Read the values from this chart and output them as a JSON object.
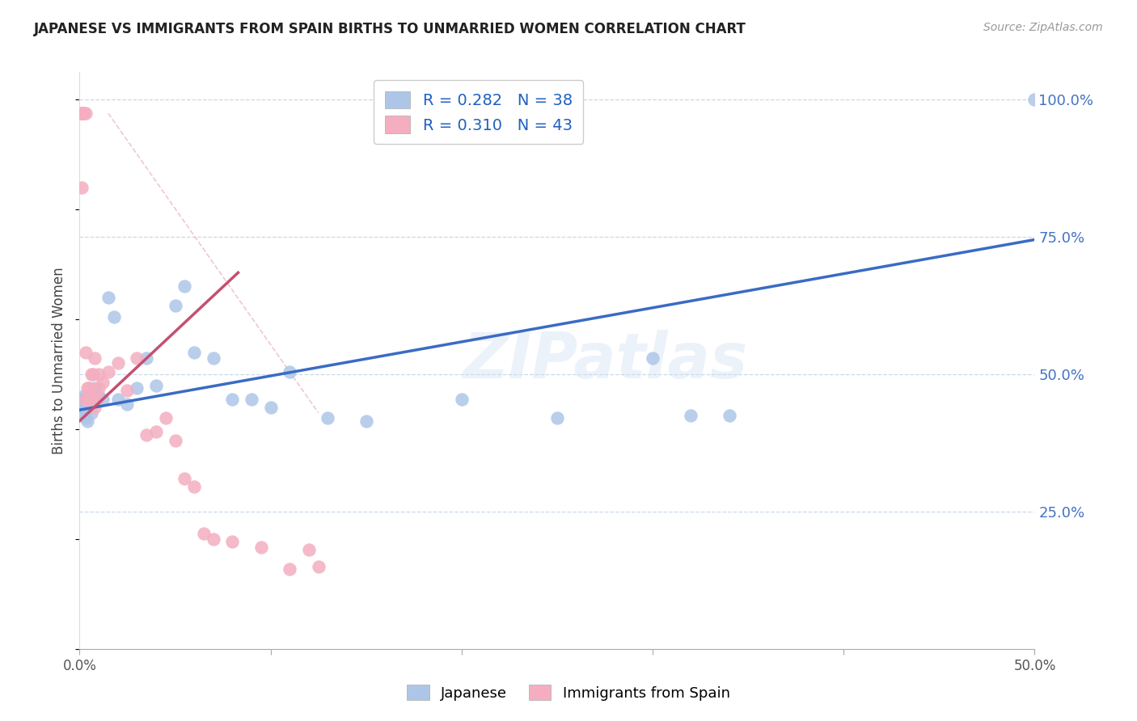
{
  "title": "JAPANESE VS IMMIGRANTS FROM SPAIN BIRTHS TO UNMARRIED WOMEN CORRELATION CHART",
  "source": "Source: ZipAtlas.com",
  "ylabel": "Births to Unmarried Women",
  "watermark": "ZIPatlas",
  "xlim": [
    0.0,
    0.5
  ],
  "ylim": [
    0.0,
    1.05
  ],
  "blue_color": "#adc6e8",
  "pink_color": "#f4aec0",
  "blue_line_color": "#3a6bc4",
  "pink_line_color": "#c45070",
  "grid_color": "#c8d8e8",
  "legend_labels": [
    "Japanese",
    "Immigrants from Spain"
  ],
  "ytick_vals": [
    0.0,
    0.25,
    0.5,
    0.75,
    1.0
  ],
  "ytick_labels": [
    "",
    "25.0%",
    "50.0%",
    "75.0%",
    "100.0%"
  ],
  "xtick_vals": [
    0.0,
    0.1,
    0.2,
    0.3,
    0.4,
    0.5
  ],
  "xtick_labels": [
    "0.0%",
    "",
    "",
    "",
    "",
    "50.0%"
  ],
  "blue_x": [
    0.001,
    0.001,
    0.002,
    0.002,
    0.003,
    0.003,
    0.004,
    0.005,
    0.005,
    0.006,
    0.007,
    0.008,
    0.009,
    0.01,
    0.012,
    0.015,
    0.018,
    0.02,
    0.025,
    0.03,
    0.035,
    0.04,
    0.05,
    0.055,
    0.06,
    0.07,
    0.08,
    0.09,
    0.1,
    0.11,
    0.13,
    0.15,
    0.2,
    0.25,
    0.3,
    0.32,
    0.34,
    0.5
  ],
  "blue_y": [
    0.44,
    0.455,
    0.43,
    0.46,
    0.42,
    0.445,
    0.415,
    0.44,
    0.46,
    0.43,
    0.455,
    0.475,
    0.455,
    0.46,
    0.455,
    0.64,
    0.605,
    0.455,
    0.445,
    0.475,
    0.53,
    0.48,
    0.625,
    0.66,
    0.54,
    0.53,
    0.455,
    0.455,
    0.44,
    0.505,
    0.42,
    0.415,
    0.455,
    0.42,
    0.53,
    0.425,
    0.425,
    1.0
  ],
  "pink_x": [
    0.001,
    0.001,
    0.001,
    0.001,
    0.001,
    0.002,
    0.002,
    0.002,
    0.002,
    0.003,
    0.003,
    0.003,
    0.004,
    0.004,
    0.005,
    0.005,
    0.006,
    0.006,
    0.007,
    0.007,
    0.008,
    0.008,
    0.009,
    0.01,
    0.01,
    0.012,
    0.015,
    0.02,
    0.025,
    0.03,
    0.035,
    0.04,
    0.045,
    0.05,
    0.055,
    0.06,
    0.065,
    0.07,
    0.08,
    0.095,
    0.11,
    0.12,
    0.125
  ],
  "pink_y": [
    0.975,
    0.975,
    0.975,
    0.975,
    0.84,
    0.975,
    0.975,
    0.975,
    0.975,
    0.975,
    0.54,
    0.455,
    0.455,
    0.475,
    0.455,
    0.475,
    0.5,
    0.46,
    0.5,
    0.46,
    0.53,
    0.44,
    0.455,
    0.5,
    0.475,
    0.485,
    0.505,
    0.52,
    0.47,
    0.53,
    0.39,
    0.395,
    0.42,
    0.38,
    0.31,
    0.295,
    0.21,
    0.2,
    0.195,
    0.185,
    0.145,
    0.18,
    0.15
  ],
  "blue_line_x": [
    0.0,
    0.5
  ],
  "blue_line_y": [
    0.435,
    0.745
  ],
  "pink_line_x": [
    0.0,
    0.083
  ],
  "pink_line_y": [
    0.415,
    0.685
  ],
  "dash_line_x": [
    0.015,
    0.125
  ],
  "dash_line_y": [
    0.975,
    0.43
  ]
}
